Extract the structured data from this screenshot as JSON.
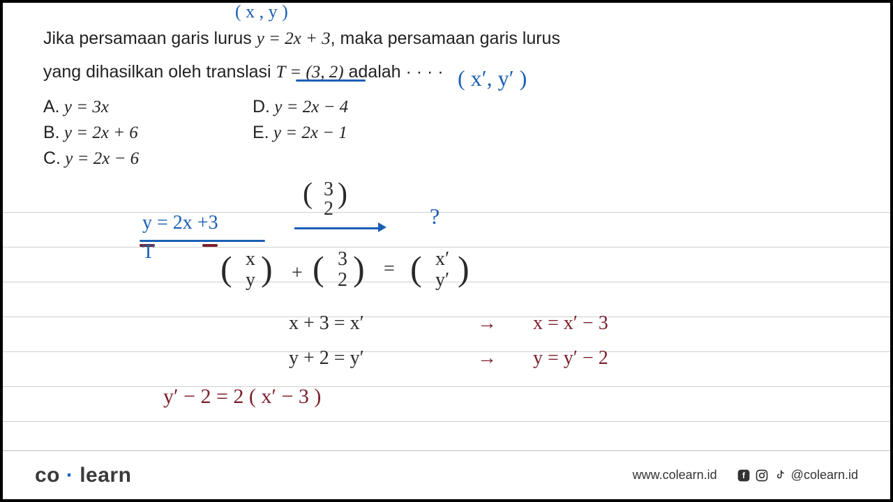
{
  "question": {
    "part1": "Jika persamaan garis lurus ",
    "eq1": "y = 2x + 3",
    "part2": ", maka persamaan garis lurus",
    "line2a": "yang dihasilkan oleh translasi ",
    "eq2": "T = (3, 2)",
    "line2b": " adalah · · · ·"
  },
  "options": {
    "A": {
      "label": "A.",
      "eq": "y = 3x"
    },
    "B": {
      "label": "B.",
      "eq": "y = 2x + 6"
    },
    "C": {
      "label": "C.",
      "eq": "y = 2x − 6"
    },
    "D": {
      "label": "D.",
      "eq": "y = 2x − 4"
    },
    "E": {
      "label": "E.",
      "eq": "y = 2x − 1"
    }
  },
  "handwriting": {
    "xy_top": "( x , y )",
    "xy_prime": "( x′, y′ )",
    "eq_blue": "y = 2x +3",
    "t_blue": "T",
    "vec32_top": "3",
    "vec32_bot": "2",
    "qmark": "?",
    "mat_x": "x",
    "mat_y": "y",
    "mat_3": "3",
    "mat_2": "2",
    "mat_xp": "x′",
    "mat_yp": "y′",
    "plus": "+",
    "eqs": "=",
    "row1_l": "x + 3 =  x′",
    "row1_r": "x =  x′ − 3",
    "row2_l": "y + 2 =  y′",
    "row2_r": "y =  y′ − 2",
    "arrow": "→",
    "final": "y′ − 2  =  2 ( x′ − 3 )"
  },
  "lines_y": [
    300,
    350,
    400,
    450,
    500,
    550,
    600
  ],
  "colors": {
    "blue": "#1a5fb4",
    "dark": "#2a2a2a",
    "maroon": "#7a1f2b",
    "grid": "#cfcfcf"
  },
  "footer": {
    "logo1": "co",
    "logo2": "learn",
    "url": "www.colearn.id",
    "handle": "@colearn.id"
  }
}
